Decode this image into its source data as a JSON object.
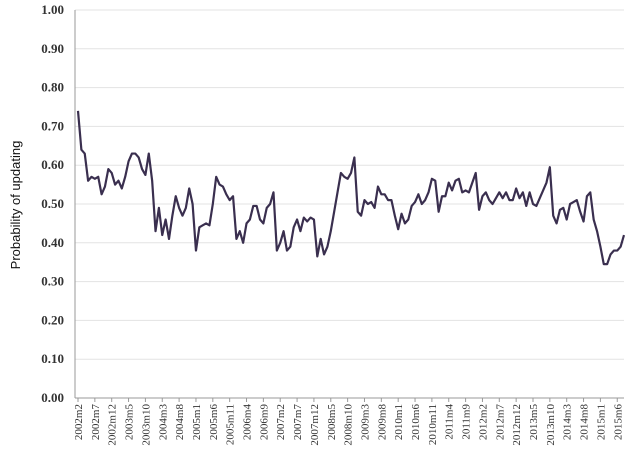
{
  "chart_data": {
    "type": "line",
    "y_label": "Probability of updating",
    "color": "#3a2f4f",
    "grid": true,
    "ylim": [
      0,
      1
    ],
    "yticks": [
      {
        "value": 0,
        "label": "0.00"
      },
      {
        "value": 0.1,
        "label": "0.10"
      },
      {
        "value": 0.2,
        "label": "0.20"
      },
      {
        "value": 0.3,
        "label": "0.30"
      },
      {
        "value": 0.4,
        "label": "0.40"
      },
      {
        "value": 0.5,
        "label": "0.50"
      },
      {
        "value": 0.6,
        "label": "0.60"
      },
      {
        "value": 0.7,
        "label": "0.70"
      },
      {
        "value": 0.8,
        "label": "0.80"
      },
      {
        "value": 0.9,
        "label": "0.90"
      },
      {
        "value": 1,
        "label": "1.00"
      }
    ],
    "categories": [
      "2002m2",
      null,
      null,
      null,
      null,
      "2002m7",
      null,
      null,
      null,
      null,
      "2002m12",
      null,
      null,
      null,
      null,
      "2003m5",
      null,
      null,
      null,
      null,
      "2003m10",
      null,
      null,
      null,
      null,
      "2004m3",
      null,
      null,
      null,
      null,
      "2004m8",
      null,
      null,
      null,
      null,
      "2005m1",
      null,
      null,
      null,
      null,
      "2005m6",
      null,
      null,
      null,
      null,
      "2005m11",
      null,
      null,
      null,
      null,
      "2006m4",
      null,
      null,
      null,
      null,
      "2006m9",
      null,
      null,
      null,
      null,
      "2007m2",
      null,
      null,
      null,
      null,
      "2007m7",
      null,
      null,
      null,
      null,
      "2007m12",
      null,
      null,
      null,
      null,
      "2008m5",
      null,
      null,
      null,
      null,
      "2008m10",
      null,
      null,
      null,
      null,
      "2009m3",
      null,
      null,
      null,
      null,
      "2009m8",
      null,
      null,
      null,
      null,
      "2010m1",
      null,
      null,
      null,
      null,
      "2010m6",
      null,
      null,
      null,
      null,
      "2010m11",
      null,
      null,
      null,
      null,
      "2011m4",
      null,
      null,
      null,
      null,
      "2011m9",
      null,
      null,
      null,
      null,
      "2012m2",
      null,
      null,
      null,
      null,
      "2012m7",
      null,
      null,
      null,
      null,
      "2012m12",
      null,
      null,
      null,
      null,
      "2013m5",
      null,
      null,
      null,
      null,
      "2013m10",
      null,
      null,
      null,
      null,
      "2014m3",
      null,
      null,
      null,
      null,
      "2014m8",
      null,
      null,
      null,
      null,
      "2015m1",
      null,
      null,
      null,
      null,
      "2015m6",
      null,
      null
    ],
    "values": [
      0.74,
      0.64,
      0.63,
      0.56,
      0.57,
      0.565,
      0.57,
      0.525,
      0.545,
      0.59,
      0.58,
      0.55,
      0.56,
      0.54,
      0.57,
      0.61,
      0.63,
      0.63,
      0.62,
      0.59,
      0.575,
      0.63,
      0.56,
      0.43,
      0.49,
      0.42,
      0.46,
      0.41,
      0.47,
      0.52,
      0.49,
      0.47,
      0.49,
      0.54,
      0.5,
      0.38,
      0.44,
      0.445,
      0.45,
      0.445,
      0.5,
      0.57,
      0.55,
      0.545,
      0.525,
      0.51,
      0.52,
      0.41,
      0.43,
      0.4,
      0.45,
      0.46,
      0.495,
      0.495,
      0.46,
      0.45,
      0.49,
      0.5,
      0.53,
      0.38,
      0.4,
      0.43,
      0.38,
      0.39,
      0.44,
      0.46,
      0.43,
      0.465,
      0.455,
      0.465,
      0.46,
      0.365,
      0.41,
      0.37,
      0.39,
      0.43,
      0.48,
      0.53,
      0.58,
      0.57,
      0.565,
      0.58,
      0.62,
      0.48,
      0.47,
      0.51,
      0.5,
      0.505,
      0.49,
      0.545,
      0.525,
      0.525,
      0.51,
      0.51,
      0.47,
      0.435,
      0.475,
      0.45,
      0.46,
      0.495,
      0.505,
      0.525,
      0.5,
      0.51,
      0.53,
      0.565,
      0.56,
      0.48,
      0.52,
      0.52,
      0.555,
      0.535,
      0.56,
      0.565,
      0.53,
      0.535,
      0.53,
      0.555,
      0.58,
      0.485,
      0.52,
      0.53,
      0.51,
      0.5,
      0.515,
      0.53,
      0.515,
      0.53,
      0.51,
      0.51,
      0.54,
      0.515,
      0.53,
      0.495,
      0.53,
      0.5,
      0.495,
      0.515,
      0.535,
      0.555,
      0.595,
      0.47,
      0.45,
      0.485,
      0.49,
      0.46,
      0.5,
      0.505,
      0.51,
      0.48,
      0.455,
      0.52,
      0.53,
      0.46,
      0.43,
      0.39,
      0.345,
      0.345,
      0.37,
      0.38,
      0.38,
      0.39,
      0.42
    ]
  }
}
